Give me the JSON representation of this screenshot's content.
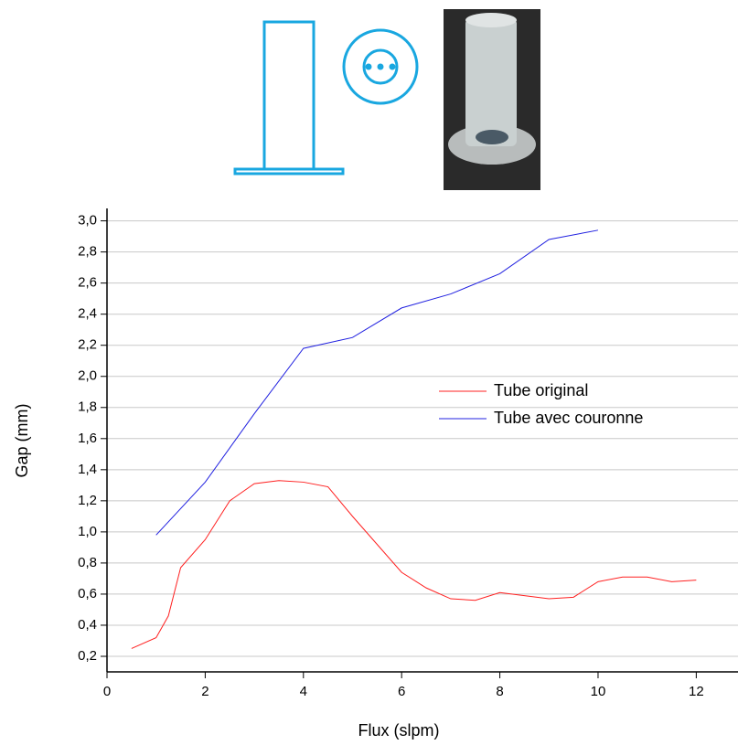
{
  "chart_data": {
    "type": "line",
    "xlabel": "Flux (slpm)",
    "ylabel": "Gap (mm)",
    "xlim": [
      0,
      12.85
    ],
    "xticks": [
      0,
      2,
      4,
      6,
      8,
      10,
      12
    ],
    "ylim": [
      0.1,
      3.08
    ],
    "yticks": [
      {
        "value": 0.2,
        "label": "0,2"
      },
      {
        "value": 0.4,
        "label": "0,4"
      },
      {
        "value": 0.6,
        "label": "0,6"
      },
      {
        "value": 0.8,
        "label": "0,8"
      },
      {
        "value": 1.0,
        "label": "1,0"
      },
      {
        "value": 1.2,
        "label": "1,2"
      },
      {
        "value": 1.4,
        "label": "1,4"
      },
      {
        "value": 1.6,
        "label": "1,6"
      },
      {
        "value": 1.8,
        "label": "1,8"
      },
      {
        "value": 2.0,
        "label": "2,0"
      },
      {
        "value": 2.2,
        "label": "2,2"
      },
      {
        "value": 2.4,
        "label": "2,4"
      },
      {
        "value": 2.6,
        "label": "2,6"
      },
      {
        "value": 2.8,
        "label": "2,8"
      },
      {
        "value": 3.0,
        "label": "3,0"
      }
    ],
    "grid": true,
    "legend": "center-right",
    "series": [
      {
        "name": "Tube original",
        "color": "#ff2020",
        "x": [
          0.5,
          1,
          1.25,
          1.5,
          2,
          2.5,
          3,
          3.5,
          4,
          4.5,
          5,
          6,
          6.5,
          7,
          7.5,
          8,
          8.5,
          9,
          9.5,
          10,
          10.5,
          11,
          11.5,
          12
        ],
        "values": [
          0.25,
          0.32,
          0.46,
          0.77,
          0.95,
          1.2,
          1.31,
          1.33,
          1.32,
          1.29,
          1.1,
          0.74,
          0.64,
          0.57,
          0.56,
          0.61,
          0.59,
          0.57,
          0.58,
          0.68,
          0.71,
          0.71,
          0.68,
          0.69
        ]
      },
      {
        "name": "Tube avec couronne",
        "color": "#2020e0",
        "x": [
          1,
          2,
          3,
          4,
          5,
          6,
          7,
          8,
          9,
          10
        ],
        "values": [
          0.98,
          1.32,
          1.76,
          2.18,
          2.25,
          2.44,
          2.53,
          2.66,
          2.88,
          2.94
        ]
      }
    ]
  }
}
